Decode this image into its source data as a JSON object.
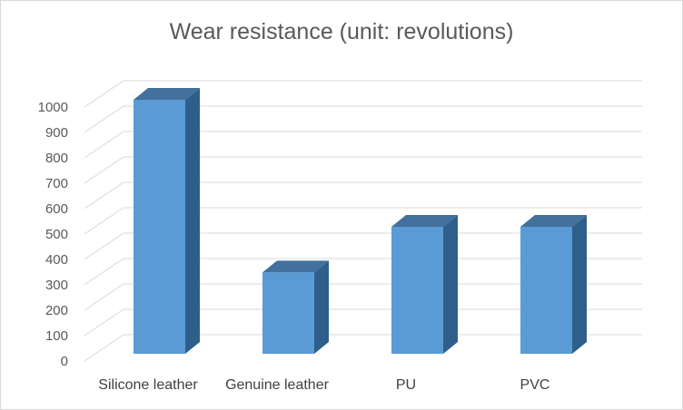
{
  "chart_data": {
    "type": "bar",
    "title": "Wear resistance (unit: revolutions)",
    "categories": [
      "Silicone leather",
      "Genuine leather",
      "PU",
      "PVC"
    ],
    "values": [
      1000,
      320,
      500,
      500
    ],
    "ylim": [
      0,
      1000
    ],
    "yticks": [
      0,
      100,
      200,
      300,
      400,
      500,
      600,
      700,
      800,
      900,
      1000
    ],
    "grid": true,
    "legend": "none",
    "colors": {
      "front": "#5b9bd5",
      "top": "#41719c",
      "side": "#2e5f8a",
      "grid": "#d9d9d9",
      "floor": "#d9d9d9"
    }
  }
}
